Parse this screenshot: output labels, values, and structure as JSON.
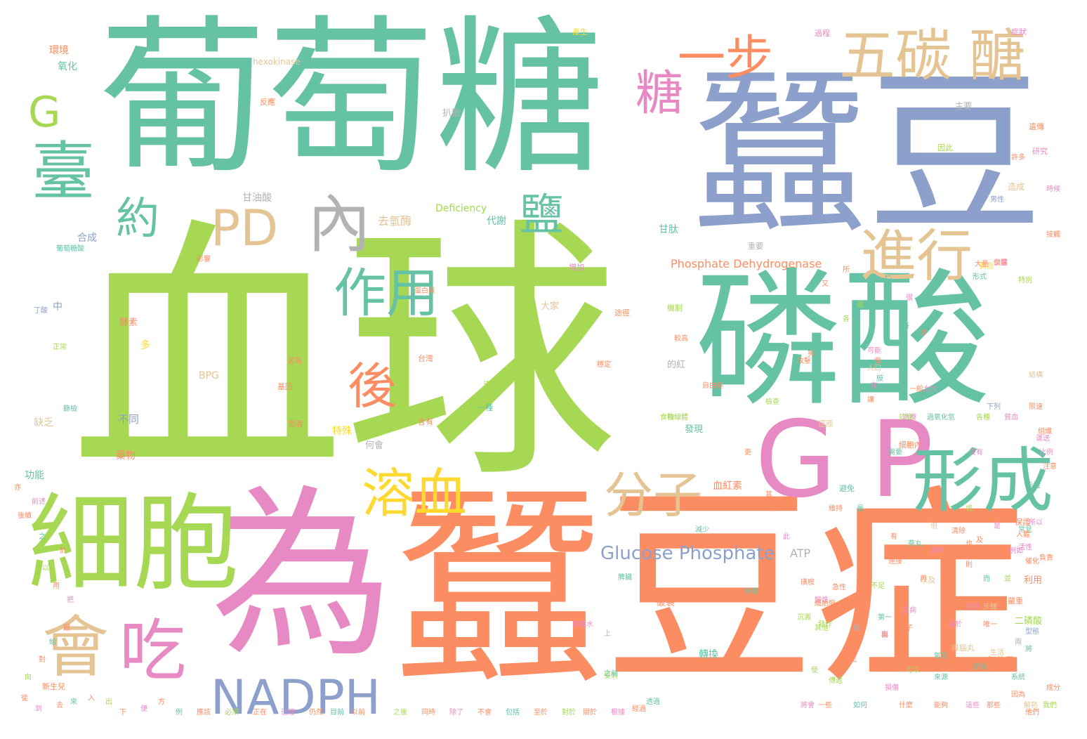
{
  "colors": {
    "green": "#a6d854",
    "teal": "#66c2a5",
    "blue": "#8da0cb",
    "orange": "#fc8d62",
    "pink": "#e78ac3",
    "tan": "#e5c494",
    "yellow": "#ffd92f",
    "gray": "#b3b3b3"
  },
  "words": [
    {
      "text": "血球",
      "color": "green"
    },
    {
      "text": "葡萄糖",
      "color": "teal"
    },
    {
      "text": "蠶豆",
      "color": "blue"
    },
    {
      "text": "蠶豆症",
      "color": "orange"
    },
    {
      "text": "為",
      "color": "pink"
    },
    {
      "text": "磷酸",
      "color": "teal"
    },
    {
      "text": "細胞",
      "color": "green"
    },
    {
      "text": "臺",
      "color": "teal"
    },
    {
      "text": "G",
      "color": "green"
    },
    {
      "text": "約",
      "color": "teal"
    },
    {
      "text": "PD",
      "color": "tan"
    },
    {
      "text": "內",
      "color": "gray"
    },
    {
      "text": "糖",
      "color": "pink"
    },
    {
      "text": "一步",
      "color": "orange"
    },
    {
      "text": "五碳 醣",
      "color": "tan"
    },
    {
      "text": "鹽",
      "color": "teal"
    },
    {
      "text": "進行",
      "color": "tan"
    },
    {
      "text": "作用",
      "color": "teal"
    },
    {
      "text": "後",
      "color": "orange"
    },
    {
      "text": "G P",
      "color": "pink"
    },
    {
      "text": "形成",
      "color": "teal"
    },
    {
      "text": "溶血",
      "color": "yellow"
    },
    {
      "text": "分子",
      "color": "tan"
    },
    {
      "text": "會",
      "color": "tan"
    },
    {
      "text": "吃",
      "color": "pink"
    },
    {
      "text": "NADPH",
      "color": "blue"
    },
    {
      "text": "Glucose Phosphate",
      "color": "blue"
    },
    {
      "text": "ATP",
      "color": "gray"
    },
    {
      "text": "Phosphate Dehydrogenase",
      "color": "orange"
    },
    {
      "text": "Deficiency",
      "color": "green"
    },
    {
      "text": "hexokinase",
      "color": "tan"
    },
    {
      "text": "BPG",
      "color": "tan"
    },
    {
      "text": "去氫酶",
      "color": "tan"
    },
    {
      "text": "代謝",
      "color": "teal"
    },
    {
      "text": "甘油酸",
      "color": "gray"
    },
    {
      "text": "甘肽",
      "color": "teal"
    },
    {
      "text": "合成",
      "color": "blue"
    },
    {
      "text": "氧化",
      "color": "teal"
    },
    {
      "text": "環境",
      "color": "orange"
    },
    {
      "text": "大家",
      "color": "tan"
    },
    {
      "text": "不同",
      "color": "blue"
    },
    {
      "text": "特殊",
      "color": "yellow"
    },
    {
      "text": "血紅素",
      "color": "orange"
    },
    {
      "text": "何會",
      "color": "gray"
    },
    {
      "text": "發現",
      "color": "teal"
    },
    {
      "text": "功能",
      "color": "teal"
    },
    {
      "text": "導致",
      "color": "green"
    },
    {
      "text": "藥物",
      "color": "orange"
    },
    {
      "text": "破裂",
      "color": "orange"
    },
    {
      "text": "轉換",
      "color": "teal"
    },
    {
      "text": "氧分子",
      "color": "orange"
    },
    {
      "text": "二磷酸",
      "color": "green"
    },
    {
      "text": "利用",
      "color": "orange"
    },
    {
      "text": "酵素",
      "color": "orange"
    },
    {
      "text": "主要",
      "color": "gray"
    },
    {
      "text": "扒散",
      "color": "gray"
    },
    {
      "text": "中",
      "color": "blue"
    },
    {
      "text": "多",
      "color": "yellow"
    },
    {
      "text": "缺乏",
      "color": "tan"
    },
    {
      "text": "的紅",
      "color": "gray"
    },
    {
      "text": "造成",
      "color": "tan"
    },
    {
      "text": "研究",
      "color": "pink"
    },
    {
      "text": "重要",
      "color": "gray"
    },
    {
      "text": "細胞內",
      "color": "orange"
    },
    {
      "text": "反應",
      "color": "orange"
    },
    {
      "text": "遺傳",
      "color": "orange"
    },
    {
      "text": "因此",
      "color": "green"
    },
    {
      "text": "過程",
      "color": "pink"
    },
    {
      "text": "能量",
      "color": "teal"
    },
    {
      "text": "產生",
      "color": "yellow"
    },
    {
      "text": "保護",
      "color": "orange"
    },
    {
      "text": "正常",
      "color": "green"
    },
    {
      "text": "症狀",
      "color": "pink"
    },
    {
      "text": "男性",
      "color": "blue"
    },
    {
      "text": "女性",
      "color": "pink"
    },
    {
      "text": "患者",
      "color": "orange"
    },
    {
      "text": "避免",
      "color": "teal"
    },
    {
      "text": "樟腦丸",
      "color": "tan"
    },
    {
      "text": "食物",
      "color": "green"
    },
    {
      "text": "含有",
      "color": "orange"
    },
    {
      "text": "可能",
      "color": "pink"
    },
    {
      "text": "需要",
      "color": "teal"
    },
    {
      "text": "以及",
      "color": "tan"
    },
    {
      "text": "其他",
      "color": "green"
    },
    {
      "text": "許多",
      "color": "orange"
    },
    {
      "text": "疾病",
      "color": "pink"
    },
    {
      "text": "嚴重",
      "color": "orange"
    },
    {
      "text": "黃疸",
      "color": "yellow"
    },
    {
      "text": "新生兒",
      "color": "orange"
    },
    {
      "text": "篩檢",
      "color": "teal"
    },
    {
      "text": "檢查",
      "color": "green"
    },
    {
      "text": "治療",
      "color": "pink"
    },
    {
      "text": "維持",
      "color": "orange"
    },
    {
      "text": "還原",
      "color": "tan"
    },
    {
      "text": "型態",
      "color": "blue"
    },
    {
      "text": "系統",
      "color": "teal"
    },
    {
      "text": "因為",
      "color": "orange"
    },
    {
      "text": "所以",
      "color": "pink"
    },
    {
      "text": "一種",
      "color": "teal"
    },
    {
      "text": "基因",
      "color": "orange"
    },
    {
      "text": "機制",
      "color": "green"
    },
    {
      "text": "途徑",
      "color": "orange"
    },
    {
      "text": "增加",
      "color": "pink"
    },
    {
      "text": "減少",
      "color": "teal"
    },
    {
      "text": "較高",
      "color": "orange"
    },
    {
      "text": "台灣",
      "color": "orange"
    },
    {
      "text": "人口",
      "color": "tan"
    },
    {
      "text": "比例",
      "color": "pink"
    },
    {
      "text": "常見",
      "color": "teal"
    },
    {
      "text": "特別",
      "color": "green"
    },
    {
      "text": "注意",
      "color": "orange"
    },
    {
      "text": "時候",
      "color": "pink"
    },
    {
      "text": "接觸",
      "color": "orange"
    },
    {
      "text": "萘丸",
      "color": "teal"
    },
    {
      "text": "紫藥水",
      "color": "pink"
    },
    {
      "text": "磺胺",
      "color": "orange"
    },
    {
      "text": "抗瘧",
      "color": "green"
    },
    {
      "text": "解熱",
      "color": "tan"
    },
    {
      "text": "成分",
      "color": "orange"
    },
    {
      "text": "由於",
      "color": "pink"
    },
    {
      "text": "使得",
      "color": "teal"
    },
    {
      "text": "容易",
      "color": "orange"
    },
    {
      "text": "受到",
      "color": "green"
    },
    {
      "text": "攻擊",
      "color": "orange"
    },
    {
      "text": "損傷",
      "color": "pink"
    },
    {
      "text": "膜",
      "color": "teal"
    },
    {
      "text": "穩定",
      "color": "orange"
    },
    {
      "text": "結構",
      "color": "tan"
    },
    {
      "text": "蛋白質",
      "color": "orange"
    },
    {
      "text": "變性",
      "color": "pink"
    },
    {
      "text": "沉澱",
      "color": "green"
    },
    {
      "text": "小體",
      "color": "orange"
    },
    {
      "text": "脾臟",
      "color": "teal"
    },
    {
      "text": "清除",
      "color": "orange"
    },
    {
      "text": "貧血",
      "color": "pink"
    },
    {
      "text": "急性",
      "color": "orange"
    },
    {
      "text": "發作",
      "color": "green"
    },
    {
      "text": "恢復",
      "color": "teal"
    },
    {
      "text": "一般",
      "color": "orange"
    },
    {
      "text": "生活",
      "color": "tan"
    },
    {
      "text": "沒有",
      "color": "pink"
    },
    {
      "text": "影響",
      "color": "orange"
    },
    {
      "text": "下列",
      "color": "blue"
    },
    {
      "text": "上",
      "color": "gray"
    },
    {
      "text": "之前",
      "color": "teal"
    },
    {
      "text": "細胞膜",
      "color": "orange"
    },
    {
      "text": "傳遞",
      "color": "green"
    },
    {
      "text": "電子",
      "color": "orange"
    },
    {
      "text": "提供",
      "color": "pink"
    },
    {
      "text": "來源",
      "color": "teal"
    },
    {
      "text": "唯一",
      "color": "orange"
    },
    {
      "text": "粒線體",
      "color": "green"
    },
    {
      "text": "無法",
      "color": "orange"
    },
    {
      "text": "其中",
      "color": "pink"
    },
    {
      "text": "第一",
      "color": "teal"
    },
    {
      "text": "限速",
      "color": "orange"
    },
    {
      "text": "步驟",
      "color": "tan"
    },
    {
      "text": "催化",
      "color": "orange"
    },
    {
      "text": "活性",
      "color": "pink"
    },
    {
      "text": "不足",
      "color": "green"
    },
    {
      "text": "連接",
      "color": "orange"
    },
    {
      "text": "形式",
      "color": "teal"
    },
    {
      "text": "個體",
      "color": "orange"
    },
    {
      "text": "例如",
      "color": "pink"
    },
    {
      "text": "自由基",
      "color": "orange"
    },
    {
      "text": "過氧化氫",
      "color": "teal"
    },
    {
      "text": "人體",
      "color": "orange"
    },
    {
      "text": "各種",
      "color": "green"
    },
    {
      "text": "組織",
      "color": "orange"
    },
    {
      "text": "運送",
      "color": "pink"
    },
    {
      "text": "氧氣",
      "color": "teal"
    },
    {
      "text": "負責",
      "color": "orange"
    },
    {
      "text": "兩",
      "color": "gray"
    },
    {
      "text": "個",
      "color": "gray"
    },
    {
      "text": "有",
      "color": "orange"
    },
    {
      "text": "是",
      "color": "pink"
    },
    {
      "text": "將",
      "color": "teal"
    },
    {
      "text": "與",
      "color": "orange"
    },
    {
      "text": "或",
      "color": "green"
    },
    {
      "text": "及",
      "color": "orange"
    },
    {
      "text": "在",
      "color": "pink"
    },
    {
      "text": "被",
      "color": "teal"
    },
    {
      "text": "讓",
      "color": "orange"
    },
    {
      "text": "使",
      "color": "green"
    },
    {
      "text": "再",
      "color": "orange"
    },
    {
      "text": "就",
      "color": "pink"
    },
    {
      "text": "而",
      "color": "teal"
    },
    {
      "text": "則",
      "color": "orange"
    },
    {
      "text": "但",
      "color": "tan"
    },
    {
      "text": "也",
      "color": "orange"
    },
    {
      "text": "都",
      "color": "pink"
    },
    {
      "text": "並",
      "color": "green"
    },
    {
      "text": "更",
      "color": "orange"
    },
    {
      "text": "最",
      "color": "teal"
    },
    {
      "text": "其",
      "color": "orange"
    },
    {
      "text": "此",
      "color": "pink"
    },
    {
      "text": "該",
      "color": "orange"
    },
    {
      "text": "各",
      "color": "green"
    },
    {
      "text": "另",
      "color": "orange"
    },
    {
      "text": "每",
      "color": "teal"
    },
    {
      "text": "所",
      "color": "orange"
    },
    {
      "text": "很",
      "color": "pink"
    },
    {
      "text": "又",
      "color": "orange"
    },
    {
      "text": "還",
      "color": "green"
    },
    {
      "text": "才",
      "color": "orange"
    },
    {
      "text": "已",
      "color": "teal"
    },
    {
      "text": "曾",
      "color": "orange"
    },
    {
      "text": "將會",
      "color": "pink"
    },
    {
      "text": "能夠",
      "color": "orange"
    },
    {
      "text": "可以",
      "color": "green"
    },
    {
      "text": "一些",
      "color": "orange"
    },
    {
      "text": "如何",
      "color": "teal"
    },
    {
      "text": "什麼",
      "color": "orange"
    },
    {
      "text": "這些",
      "color": "pink"
    },
    {
      "text": "那些",
      "color": "orange"
    },
    {
      "text": "我們",
      "color": "green"
    },
    {
      "text": "他們",
      "color": "orange"
    },
    {
      "text": "透過",
      "color": "teal"
    },
    {
      "text": "經過",
      "color": "orange"
    },
    {
      "text": "根據",
      "color": "pink"
    },
    {
      "text": "關於",
      "color": "orange"
    },
    {
      "text": "對於",
      "color": "green"
    },
    {
      "text": "至於",
      "color": "orange"
    },
    {
      "text": "包括",
      "color": "teal"
    },
    {
      "text": "不會",
      "color": "orange"
    },
    {
      "text": "除了",
      "color": "pink"
    },
    {
      "text": "同時",
      "color": "orange"
    },
    {
      "text": "之後",
      "color": "green"
    },
    {
      "text": "以前",
      "color": "orange"
    },
    {
      "text": "目前",
      "color": "teal"
    },
    {
      "text": "仍然",
      "color": "orange"
    },
    {
      "text": "已經",
      "color": "pink"
    },
    {
      "text": "正在",
      "color": "orange"
    },
    {
      "text": "必須",
      "color": "green"
    },
    {
      "text": "應該",
      "color": "orange"
    },
    {
      "text": "例",
      "color": "teal"
    },
    {
      "text": "方",
      "color": "orange"
    },
    {
      "text": "便",
      "color": "pink"
    },
    {
      "text": "下",
      "color": "orange"
    },
    {
      "text": "出",
      "color": "green"
    },
    {
      "text": "入",
      "color": "orange"
    },
    {
      "text": "來",
      "color": "teal"
    },
    {
      "text": "去",
      "color": "orange"
    },
    {
      "text": "到",
      "color": "pink"
    },
    {
      "text": "從",
      "color": "orange"
    },
    {
      "text": "向",
      "color": "green"
    },
    {
      "text": "對",
      "color": "orange"
    },
    {
      "text": "給",
      "color": "teal"
    },
    {
      "text": "跟",
      "color": "orange"
    },
    {
      "text": "把",
      "color": "pink"
    },
    {
      "text": "用",
      "color": "orange"
    },
    {
      "text": "以",
      "color": "green"
    },
    {
      "text": "於",
      "color": "orange"
    },
    {
      "text": "之",
      "color": "teal"
    },
    {
      "text": "後續",
      "color": "orange"
    },
    {
      "text": "前述",
      "color": "pink"
    },
    {
      "text": "亦",
      "color": "orange"
    },
    {
      "text": "丁酸",
      "color": "blue"
    },
    {
      "text": "葡萄糖酸",
      "color": "teal"
    },
    {
      "text": "大量",
      "color": "orange"
    },
    {
      "text": "少量",
      "color": "pink"
    }
  ]
}
